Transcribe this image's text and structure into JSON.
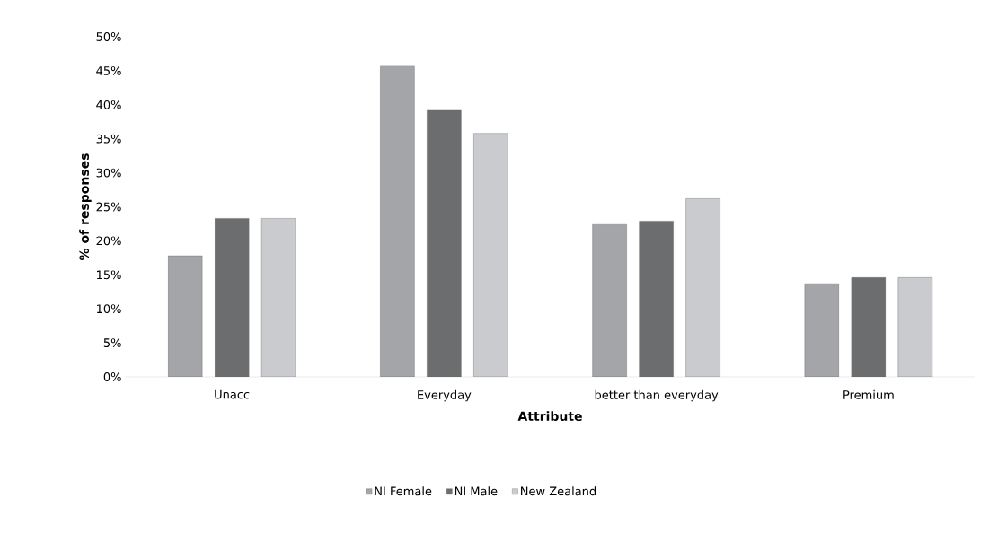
{
  "chart_data": {
    "type": "bar",
    "xlabel": "Attribute",
    "ylabel": "% of responses",
    "categories": [
      "Unacc",
      "Everyday",
      "better than everyday",
      "Premium"
    ],
    "series": [
      {
        "name": "NI Female",
        "color": "#a3a5a8",
        "values": [
          17.8,
          45.8,
          22.4,
          13.7
        ]
      },
      {
        "name": "NI Male",
        "color": "#6b6d6f",
        "values": [
          23.3,
          39.2,
          22.9,
          14.6
        ]
      },
      {
        "name": "New Zealand",
        "color": "#c9cbce",
        "values": [
          23.3,
          35.8,
          26.2,
          14.6
        ]
      }
    ],
    "ylim": [
      0,
      50
    ],
    "yticks": [
      {
        "value": 0,
        "label": "0%"
      },
      {
        "value": 5,
        "label": "5%"
      },
      {
        "value": 10,
        "label": "10%"
      },
      {
        "value": 15,
        "label": "15%"
      },
      {
        "value": 20,
        "label": "20%"
      },
      {
        "value": 25,
        "label": "25%"
      },
      {
        "value": 30,
        "label": "30%"
      },
      {
        "value": 35,
        "label": "35%"
      },
      {
        "value": 40,
        "label": "40%"
      },
      {
        "value": 45,
        "label": "45%"
      },
      {
        "value": 50,
        "label": "50%"
      }
    ],
    "grid": false,
    "legend": "bottom"
  }
}
